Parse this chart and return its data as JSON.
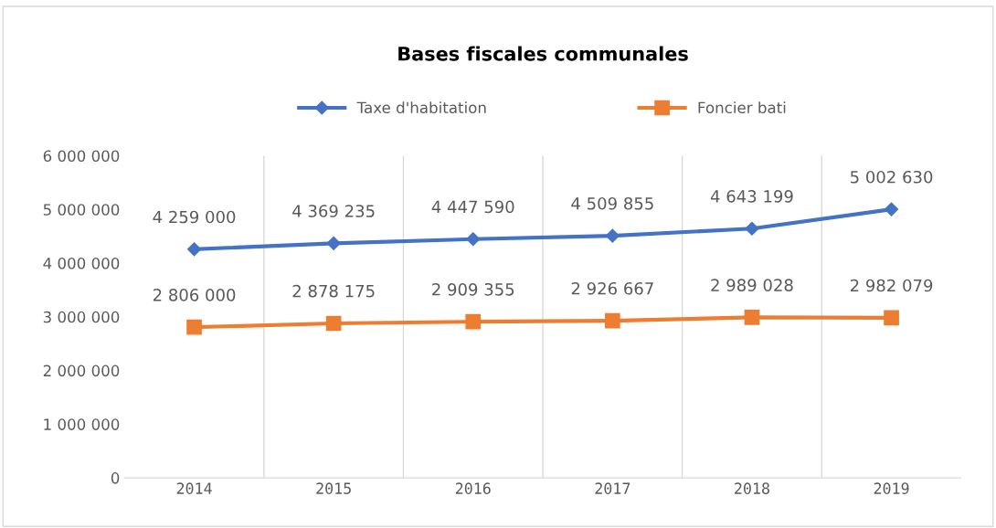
{
  "chart_data": {
    "type": "line",
    "title": "Bases fiscales communales",
    "categories": [
      "2014",
      "2015",
      "2016",
      "2017",
      "2018",
      "2019"
    ],
    "series": [
      {
        "name": "Taxe d'habitation",
        "color": "#4472c4",
        "marker": "diamond",
        "values": [
          4259000,
          4369235,
          4447590,
          4509855,
          4643199,
          5002630
        ],
        "value_labels": [
          "4 259 000",
          "4 369 235",
          "4 447 590",
          "4 509 855",
          "4 643 199",
          "5 002 630"
        ]
      },
      {
        "name": "Foncier bati",
        "color": "#ed7d31",
        "marker": "square",
        "values": [
          2806000,
          2878175,
          2909355,
          2926667,
          2989028,
          2982079
        ],
        "value_labels": [
          "2 806 000",
          "2 878 175",
          "2 909 355",
          "2 926 667",
          "2 989 028",
          "2 982 079"
        ]
      }
    ],
    "ylim": [
      0,
      6000000
    ],
    "yticks": [
      0,
      {
        "value": 1000000,
        "label": "1 000 000"
      },
      {
        "value": 2000000,
        "label": "2 000 000"
      },
      {
        "value": 3000000,
        "label": "3 000 000"
      },
      {
        "value": 4000000,
        "label": "4 000 000"
      },
      {
        "value": 5000000,
        "label": "5 000 000"
      },
      {
        "value": 6000000,
        "label": "6 000 000"
      }
    ],
    "grid": "x",
    "legend": "top",
    "line_style": "solid"
  }
}
